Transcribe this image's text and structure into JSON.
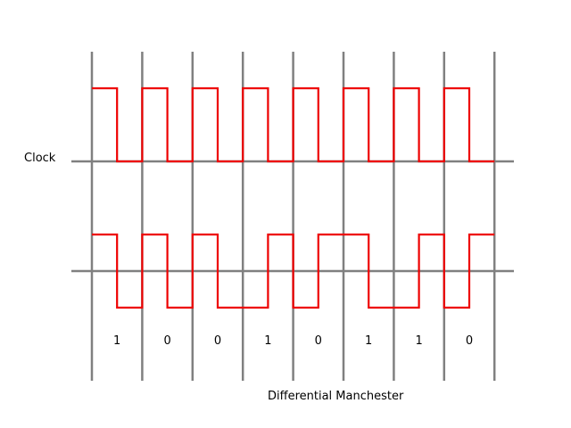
{
  "diagram": {
    "top_label": "Clock",
    "bottom_label": "Differential Manchester",
    "bits": [
      "1",
      "0",
      "0",
      "1",
      "0",
      "1",
      "1",
      "0"
    ],
    "colors": {
      "signal": "#ee0000",
      "grid": "#808080",
      "text": "#000000"
    }
  },
  "chart_data": {
    "type": "line",
    "title": "",
    "x_boundaries": [
      0,
      1,
      2,
      3,
      4,
      5,
      6,
      7,
      8
    ],
    "bits": [
      1,
      0,
      0,
      1,
      0,
      1,
      1,
      0
    ],
    "series": [
      {
        "name": "Clock",
        "x": [
          0,
          0.5,
          0.5,
          1,
          1,
          1.5,
          1.5,
          2,
          2,
          2.5,
          2.5,
          3,
          3,
          3.5,
          3.5,
          4,
          4,
          4.5,
          4.5,
          5,
          5,
          5.5,
          5.5,
          6,
          6,
          6.5,
          6.5,
          7,
          7,
          7.5,
          7.5,
          8
        ],
        "y": [
          1,
          1,
          0,
          0,
          1,
          1,
          0,
          0,
          1,
          1,
          0,
          0,
          1,
          1,
          0,
          0,
          1,
          1,
          0,
          0,
          1,
          1,
          0,
          0,
          1,
          1,
          0,
          0,
          1,
          1,
          0,
          0
        ]
      },
      {
        "name": "Differential Manchester",
        "x": [
          0,
          0.5,
          0.5,
          1,
          1,
          1.5,
          1.5,
          2,
          2,
          2.5,
          2.5,
          3,
          3,
          3.5,
          3.5,
          4,
          4,
          4.5,
          4.5,
          5,
          5,
          5.5,
          5.5,
          6,
          6,
          6.5,
          6.5,
          7,
          7,
          7.5,
          7.5,
          8
        ],
        "y": [
          1,
          1,
          -1,
          -1,
          1,
          1,
          -1,
          -1,
          1,
          1,
          -1,
          -1,
          -1,
          -1,
          1,
          1,
          -1,
          -1,
          1,
          1,
          1,
          1,
          -1,
          -1,
          -1,
          -1,
          1,
          1,
          -1,
          -1,
          1,
          1
        ]
      }
    ]
  }
}
